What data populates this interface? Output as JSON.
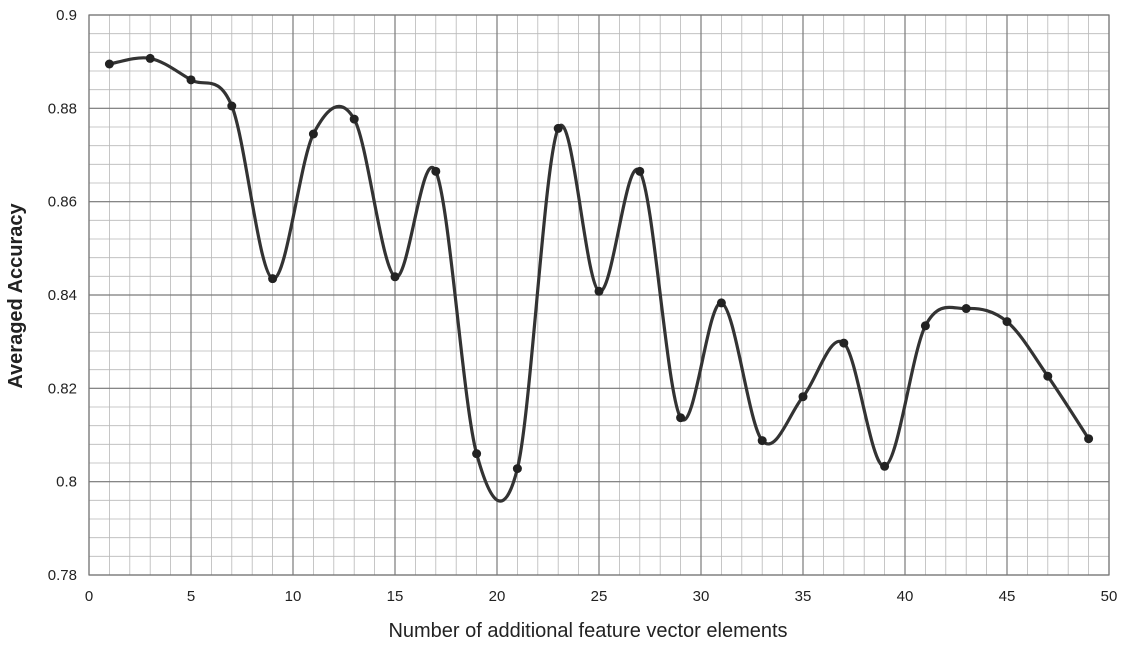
{
  "chart_data": {
    "type": "line",
    "title": "",
    "xlabel": "Number of additional feature vector elements",
    "ylabel": "Averaged Accuracy",
    "xlim": [
      0,
      50
    ],
    "ylim": [
      0.78,
      0.9
    ],
    "x_ticks": [
      0,
      5,
      10,
      15,
      20,
      25,
      30,
      35,
      40,
      45,
      50
    ],
    "x_tick_labels": [
      "0",
      "5",
      "10",
      "15",
      "20",
      "25",
      "30",
      "35",
      "40",
      "45",
      "50"
    ],
    "y_ticks": [
      0.78,
      0.8,
      0.82,
      0.84,
      0.86,
      0.88,
      0.9
    ],
    "y_tick_labels": [
      "0.78",
      "0.8",
      "0.82",
      "0.84",
      "0.86",
      "0.88",
      "0.9"
    ],
    "grid": true,
    "minor_grid_x_step": 1,
    "minor_grid_y_step": 0.004,
    "legend": "none",
    "line_color": "#333333",
    "series": [
      {
        "x": [
          1,
          3,
          5,
          7,
          9,
          11,
          13,
          15,
          17,
          19,
          21,
          23,
          25,
          27,
          29,
          31,
          33,
          35,
          37,
          39,
          41,
          43,
          45,
          47,
          49
        ],
        "values": [
          0.8895,
          0.8907,
          0.8861,
          0.8805,
          0.8435,
          0.8745,
          0.8777,
          0.8439,
          0.8665,
          0.806,
          0.8028,
          0.8757,
          0.8408,
          0.8665,
          0.8137,
          0.8383,
          0.8088,
          0.8182,
          0.8297,
          0.8033,
          0.8334,
          0.8371,
          0.8343,
          0.8226,
          0.8092
        ]
      }
    ]
  }
}
